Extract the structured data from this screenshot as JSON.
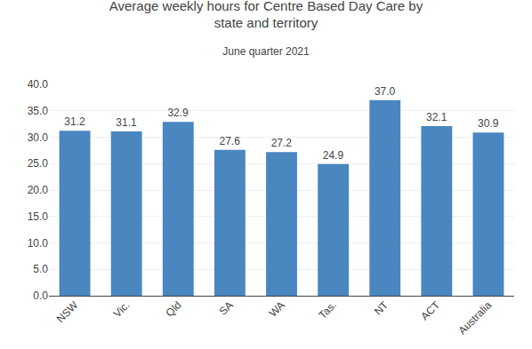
{
  "chart_data": {
    "type": "bar",
    "title": "Average weekly hours for Centre Based Day Care by\nstate and territory",
    "subtitle": "June quarter 2021",
    "categories": [
      "NSW",
      "Vic.",
      "Qld",
      "SA",
      "WA",
      "Tas.",
      "NT",
      "ACT",
      "Australia"
    ],
    "values": [
      31.2,
      31.1,
      32.9,
      27.6,
      27.2,
      24.9,
      37.0,
      32.1,
      30.9
    ],
    "value_labels": [
      "31.2",
      "31.1",
      "32.9",
      "27.6",
      "27.2",
      "24.9",
      "37.0",
      "32.1",
      "30.9"
    ],
    "data_labels": true,
    "color": "#4A86C0",
    "ylim": [
      0,
      40
    ],
    "yticks": [
      {
        "value": 0,
        "label": "0.0"
      },
      {
        "value": 5,
        "label": "5.0"
      },
      {
        "value": 10,
        "label": "10.0"
      },
      {
        "value": 15,
        "label": "15.0"
      },
      {
        "value": 20,
        "label": "20.0"
      },
      {
        "value": 25,
        "label": "25.0"
      },
      {
        "value": 30,
        "label": "30.0"
      },
      {
        "value": 35,
        "label": "35.0"
      },
      {
        "value": 40,
        "label": "40.0"
      }
    ],
    "grid": true
  }
}
